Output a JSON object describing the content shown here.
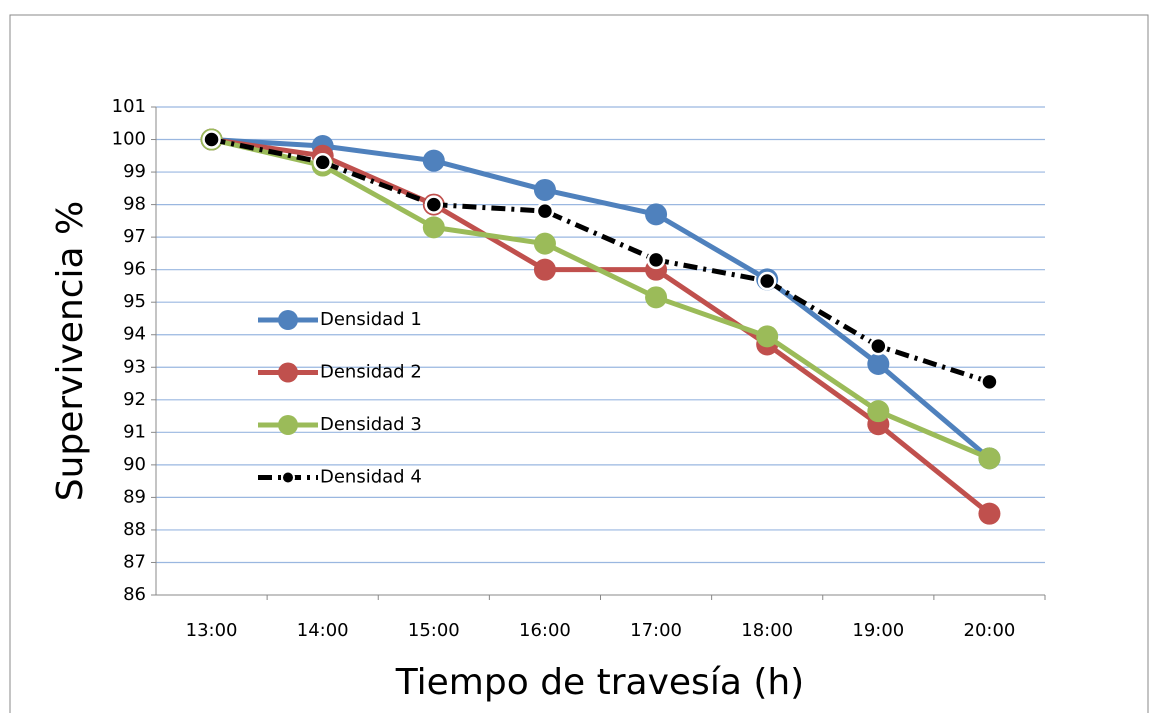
{
  "chart_data": {
    "type": "line",
    "x_label": "Tiempo de travesía (h)",
    "y_label": "Supervivencia %",
    "categories": [
      "13:00",
      "14:00",
      "15:00",
      "16:00",
      "17:00",
      "18:00",
      "19:00",
      "20:00"
    ],
    "series": [
      {
        "name": "Densidad 1",
        "color": "#4f81bd",
        "values": [
          100,
          99.8,
          99.35,
          98.45,
          97.7,
          95.7,
          93.1,
          90.2
        ]
      },
      {
        "name": "Densidad 2",
        "color": "#c0504d",
        "values": [
          100,
          99.5,
          98.0,
          96.0,
          96.0,
          93.7,
          91.25,
          88.5
        ]
      },
      {
        "name": "Densidad 3",
        "color": "#9bbb59",
        "values": [
          100,
          99.2,
          97.3,
          96.8,
          95.15,
          93.95,
          91.65,
          90.2
        ]
      },
      {
        "name": "Densidad 4",
        "color": "#000000",
        "dash": "dash-dot",
        "values": [
          100,
          99.3,
          98.0,
          97.8,
          96.3,
          95.65,
          93.65,
          92.55
        ]
      }
    ],
    "ylim": [
      86,
      101
    ],
    "yticks": [
      86,
      87,
      88,
      89,
      90,
      91,
      92,
      93,
      94,
      95,
      96,
      97,
      98,
      99,
      100,
      101
    ],
    "grid": true,
    "legend": "left"
  }
}
